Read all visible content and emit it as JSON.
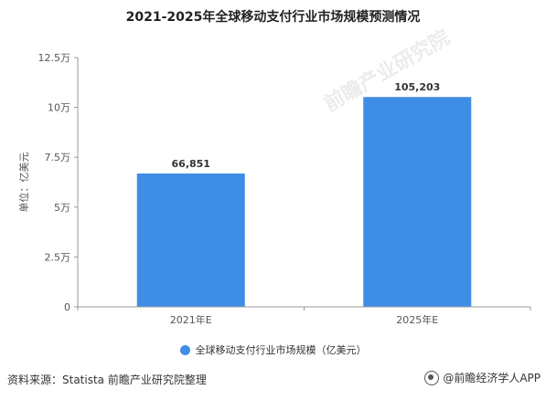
{
  "title": "2021-2025年全球移动支付行业市场规模预测情况",
  "source": "资料来源：Statista 前瞻产业研究院整理",
  "brand": "@前瞻经济学人APP",
  "watermark": "前瞻产业研究院",
  "colors": {
    "bar": "#3f8ee6",
    "axis": "#999999",
    "grid": "#e5e5e5"
  },
  "chart_data": {
    "type": "bar",
    "categories": [
      "2021年E",
      "2025年E"
    ],
    "series": [
      {
        "name": "全球移动支付行业市场规模（亿美元）",
        "values": [
          66851,
          105203
        ]
      }
    ],
    "data_labels": [
      "66,851",
      "105,203"
    ],
    "ylabel": "单位：亿美元",
    "yticks": [
      0,
      25000,
      50000,
      75000,
      100000,
      125000
    ],
    "ytick_labels": [
      "0",
      "2.5万",
      "5万",
      "7.5万",
      "10万",
      "12.5万"
    ],
    "ylim": [
      0,
      125000
    ],
    "grid": false,
    "legend_position": "bottom"
  }
}
